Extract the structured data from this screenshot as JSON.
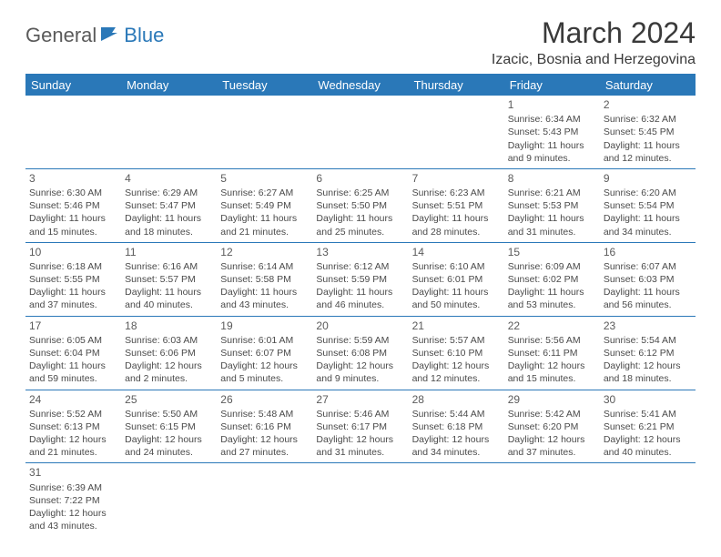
{
  "logo": {
    "part1": "General",
    "part2": "Blue"
  },
  "title": "March 2024",
  "location": "Izacic, Bosnia and Herzegovina",
  "colors": {
    "header_bg": "#2a78b8",
    "header_text": "#ffffff",
    "border": "#2a78b8",
    "text": "#4a4a4a",
    "title_color": "#3a3a3a"
  },
  "weekdays": [
    "Sunday",
    "Monday",
    "Tuesday",
    "Wednesday",
    "Thursday",
    "Friday",
    "Saturday"
  ],
  "grid_cols": 7,
  "grid_rows": 6,
  "days": [
    null,
    null,
    null,
    null,
    null,
    {
      "n": "1",
      "sr": "6:34 AM",
      "ss": "5:43 PM",
      "dl": "11 hours and 9 minutes."
    },
    {
      "n": "2",
      "sr": "6:32 AM",
      "ss": "5:45 PM",
      "dl": "11 hours and 12 minutes."
    },
    {
      "n": "3",
      "sr": "6:30 AM",
      "ss": "5:46 PM",
      "dl": "11 hours and 15 minutes."
    },
    {
      "n": "4",
      "sr": "6:29 AM",
      "ss": "5:47 PM",
      "dl": "11 hours and 18 minutes."
    },
    {
      "n": "5",
      "sr": "6:27 AM",
      "ss": "5:49 PM",
      "dl": "11 hours and 21 minutes."
    },
    {
      "n": "6",
      "sr": "6:25 AM",
      "ss": "5:50 PM",
      "dl": "11 hours and 25 minutes."
    },
    {
      "n": "7",
      "sr": "6:23 AM",
      "ss": "5:51 PM",
      "dl": "11 hours and 28 minutes."
    },
    {
      "n": "8",
      "sr": "6:21 AM",
      "ss": "5:53 PM",
      "dl": "11 hours and 31 minutes."
    },
    {
      "n": "9",
      "sr": "6:20 AM",
      "ss": "5:54 PM",
      "dl": "11 hours and 34 minutes."
    },
    {
      "n": "10",
      "sr": "6:18 AM",
      "ss": "5:55 PM",
      "dl": "11 hours and 37 minutes."
    },
    {
      "n": "11",
      "sr": "6:16 AM",
      "ss": "5:57 PM",
      "dl": "11 hours and 40 minutes."
    },
    {
      "n": "12",
      "sr": "6:14 AM",
      "ss": "5:58 PM",
      "dl": "11 hours and 43 minutes."
    },
    {
      "n": "13",
      "sr": "6:12 AM",
      "ss": "5:59 PM",
      "dl": "11 hours and 46 minutes."
    },
    {
      "n": "14",
      "sr": "6:10 AM",
      "ss": "6:01 PM",
      "dl": "11 hours and 50 minutes."
    },
    {
      "n": "15",
      "sr": "6:09 AM",
      "ss": "6:02 PM",
      "dl": "11 hours and 53 minutes."
    },
    {
      "n": "16",
      "sr": "6:07 AM",
      "ss": "6:03 PM",
      "dl": "11 hours and 56 minutes."
    },
    {
      "n": "17",
      "sr": "6:05 AM",
      "ss": "6:04 PM",
      "dl": "11 hours and 59 minutes."
    },
    {
      "n": "18",
      "sr": "6:03 AM",
      "ss": "6:06 PM",
      "dl": "12 hours and 2 minutes."
    },
    {
      "n": "19",
      "sr": "6:01 AM",
      "ss": "6:07 PM",
      "dl": "12 hours and 5 minutes."
    },
    {
      "n": "20",
      "sr": "5:59 AM",
      "ss": "6:08 PM",
      "dl": "12 hours and 9 minutes."
    },
    {
      "n": "21",
      "sr": "5:57 AM",
      "ss": "6:10 PM",
      "dl": "12 hours and 12 minutes."
    },
    {
      "n": "22",
      "sr": "5:56 AM",
      "ss": "6:11 PM",
      "dl": "12 hours and 15 minutes."
    },
    {
      "n": "23",
      "sr": "5:54 AM",
      "ss": "6:12 PM",
      "dl": "12 hours and 18 minutes."
    },
    {
      "n": "24",
      "sr": "5:52 AM",
      "ss": "6:13 PM",
      "dl": "12 hours and 21 minutes."
    },
    {
      "n": "25",
      "sr": "5:50 AM",
      "ss": "6:15 PM",
      "dl": "12 hours and 24 minutes."
    },
    {
      "n": "26",
      "sr": "5:48 AM",
      "ss": "6:16 PM",
      "dl": "12 hours and 27 minutes."
    },
    {
      "n": "27",
      "sr": "5:46 AM",
      "ss": "6:17 PM",
      "dl": "12 hours and 31 minutes."
    },
    {
      "n": "28",
      "sr": "5:44 AM",
      "ss": "6:18 PM",
      "dl": "12 hours and 34 minutes."
    },
    {
      "n": "29",
      "sr": "5:42 AM",
      "ss": "6:20 PM",
      "dl": "12 hours and 37 minutes."
    },
    {
      "n": "30",
      "sr": "5:41 AM",
      "ss": "6:21 PM",
      "dl": "12 hours and 40 minutes."
    },
    {
      "n": "31",
      "sr": "6:39 AM",
      "ss": "7:22 PM",
      "dl": "12 hours and 43 minutes."
    },
    null,
    null,
    null,
    null,
    null,
    null
  ],
  "labels": {
    "sunrise": "Sunrise:",
    "sunset": "Sunset:",
    "daylight": "Daylight:"
  }
}
